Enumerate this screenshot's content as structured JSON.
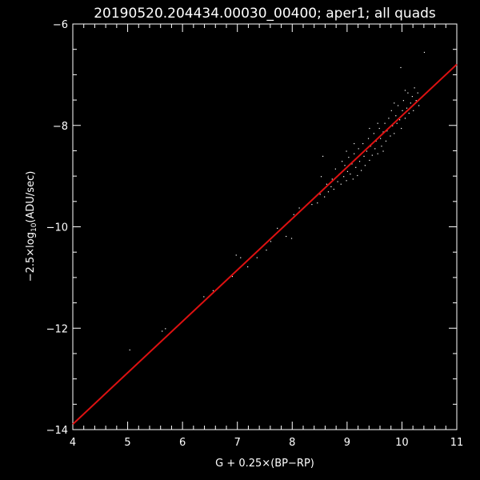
{
  "chart_data": {
    "type": "scatter",
    "title": "20190520.204434.00030_00400; aper1; all quads",
    "xlabel": "G + 0.25×(BP−RP)",
    "ylabel": {
      "prefix": "−2.5×log",
      "subscript": "10",
      "suffix": "(ADU/sec)"
    },
    "xlim": [
      4,
      11
    ],
    "ylim": [
      -14,
      -6
    ],
    "y_inverted": true,
    "xticks": [
      4,
      5,
      6,
      7,
      8,
      9,
      10,
      11
    ],
    "yticks": [
      -14,
      -12,
      -10,
      -8,
      -6
    ],
    "xtick_labels": [
      "4",
      "5",
      "6",
      "7",
      "8",
      "9",
      "10",
      "11"
    ],
    "ytick_labels": [
      "−14",
      "−12",
      "−10",
      "−8",
      "−6"
    ],
    "grid": false,
    "colors": {
      "background": "#000000",
      "points": "#ffffff",
      "fit_line": "#dd1111",
      "axes": "#ffffff"
    },
    "fit_line": {
      "slope": 1.014,
      "intercept": -17.95
    },
    "points": [
      [
        5.03,
        -12.42
      ],
      [
        5.62,
        -12.05
      ],
      [
        5.68,
        -12.0
      ],
      [
        6.38,
        -11.37
      ],
      [
        6.55,
        -11.25
      ],
      [
        6.9,
        -10.97
      ],
      [
        6.97,
        -10.55
      ],
      [
        7.05,
        -10.6
      ],
      [
        7.18,
        -10.78
      ],
      [
        7.35,
        -10.6
      ],
      [
        7.52,
        -10.45
      ],
      [
        7.6,
        -10.28
      ],
      [
        7.72,
        -10.02
      ],
      [
        7.88,
        -10.18
      ],
      [
        7.95,
        -9.88
      ],
      [
        7.98,
        -10.22
      ],
      [
        8.02,
        -9.75
      ],
      [
        8.12,
        -9.62
      ],
      [
        8.22,
        -9.6
      ],
      [
        8.35,
        -9.55
      ],
      [
        8.45,
        -9.52
      ],
      [
        8.5,
        -9.35
      ],
      [
        8.52,
        -9.0
      ],
      [
        8.55,
        -8.6
      ],
      [
        8.58,
        -9.4
      ],
      [
        8.62,
        -9.15
      ],
      [
        8.65,
        -9.3
      ],
      [
        8.7,
        -9.2
      ],
      [
        8.72,
        -9.05
      ],
      [
        8.75,
        -9.25
      ],
      [
        8.78,
        -8.85
      ],
      [
        8.82,
        -9.1
      ],
      [
        8.85,
        -8.95
      ],
      [
        8.88,
        -9.15
      ],
      [
        8.9,
        -8.7
      ],
      [
        8.93,
        -9.0
      ],
      [
        8.95,
        -8.78
      ],
      [
        8.98,
        -9.08
      ],
      [
        9.0,
        -8.9
      ],
      [
        9.02,
        -8.62
      ],
      [
        9.05,
        -8.95
      ],
      [
        9.08,
        -8.75
      ],
      [
        9.1,
        -9.05
      ],
      [
        9.12,
        -8.55
      ],
      [
        9.15,
        -8.82
      ],
      [
        9.18,
        -8.98
      ],
      [
        9.2,
        -8.45
      ],
      [
        9.22,
        -8.7
      ],
      [
        9.25,
        -8.88
      ],
      [
        9.28,
        -8.35
      ],
      [
        9.3,
        -8.6
      ],
      [
        9.32,
        -8.78
      ],
      [
        9.35,
        -8.5
      ],
      [
        9.38,
        -8.25
      ],
      [
        9.4,
        -8.68
      ],
      [
        9.42,
        -8.4
      ],
      [
        9.45,
        -8.58
      ],
      [
        9.48,
        -8.15
      ],
      [
        9.5,
        -8.45
      ],
      [
        9.52,
        -8.3
      ],
      [
        9.55,
        -8.55
      ],
      [
        9.58,
        -8.05
      ],
      [
        9.6,
        -8.25
      ],
      [
        9.62,
        -8.4
      ],
      [
        9.65,
        -8.12
      ],
      [
        9.68,
        -7.95
      ],
      [
        9.7,
        -8.3
      ],
      [
        9.72,
        -8.1
      ],
      [
        9.75,
        -7.85
      ],
      [
        9.78,
        -8.2
      ],
      [
        9.8,
        -7.7
      ],
      [
        9.82,
        -8.0
      ],
      [
        9.85,
        -8.15
      ],
      [
        9.88,
        -7.8
      ],
      [
        9.9,
        -7.95
      ],
      [
        9.92,
        -7.6
      ],
      [
        9.95,
        -7.88
      ],
      [
        9.98,
        -8.05
      ],
      [
        10.0,
        -7.7
      ],
      [
        10.02,
        -7.5
      ],
      [
        10.05,
        -7.85
      ],
      [
        10.08,
        -7.65
      ],
      [
        10.1,
        -7.35
      ],
      [
        10.12,
        -7.75
      ],
      [
        10.15,
        -7.55
      ],
      [
        10.18,
        -7.42
      ],
      [
        10.2,
        -7.7
      ],
      [
        10.22,
        -7.25
      ],
      [
        10.25,
        -7.5
      ],
      [
        10.28,
        -7.35
      ],
      [
        10.3,
        -7.6
      ],
      [
        9.4,
        -8.05
      ],
      [
        9.55,
        -7.95
      ],
      [
        9.65,
        -8.5
      ],
      [
        9.85,
        -7.55
      ],
      [
        9.97,
        -6.85
      ],
      [
        10.4,
        -6.55
      ],
      [
        9.12,
        -8.35
      ],
      [
        8.98,
        -8.5
      ],
      [
        10.05,
        -7.3
      ]
    ]
  }
}
